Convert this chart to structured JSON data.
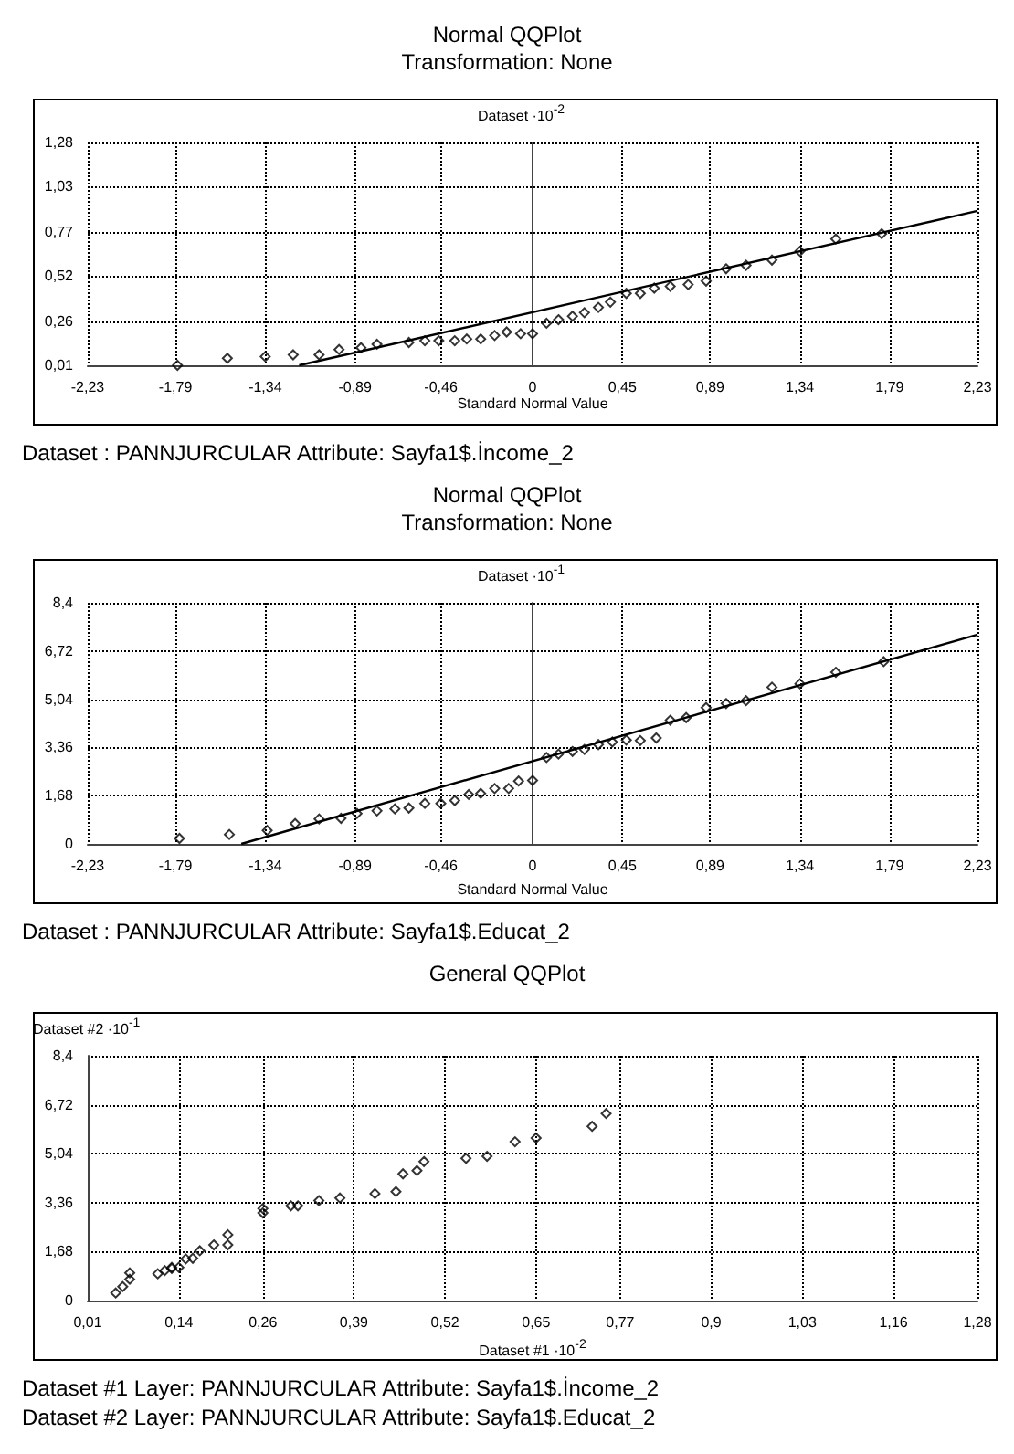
{
  "chart_data": [
    {
      "type": "scatter",
      "title": "Normal QQPlot",
      "subtitle": "Transformation: None",
      "xlabel": "Standard Normal Value",
      "ylabel": "Dataset ·10$^{-2}$",
      "marker": "diamond",
      "grid": true,
      "annotations": [
        "Dataset : PANNJURCULAR Attribute: Sayfa1$.İncome_2"
      ],
      "xlim": [
        -2.23,
        2.23
      ],
      "xticks": [
        {
          "value": -2.23,
          "label": "-2,23"
        },
        {
          "value": -1.79,
          "label": "-1,79"
        },
        {
          "value": -1.34,
          "label": "-1,34"
        },
        {
          "value": -0.89,
          "label": "-0,89"
        },
        {
          "value": -0.46,
          "label": "-0,46"
        },
        0,
        {
          "value": 0.45,
          "label": "0,45"
        },
        {
          "value": 0.89,
          "label": "0,89"
        },
        {
          "value": 1.34,
          "label": "1,34"
        },
        {
          "value": 1.79,
          "label": "1,79"
        },
        {
          "value": 2.23,
          "label": "2,23"
        }
      ],
      "ylim": [
        0.01,
        1.28
      ],
      "yticks": [
        {
          "value": 0.01,
          "label": "0,01"
        },
        {
          "value": 0.26,
          "label": "0,26"
        },
        {
          "value": 0.52,
          "label": "0,52"
        },
        {
          "value": 0.77,
          "label": "0,77"
        },
        {
          "value": 1.03,
          "label": "1,03"
        },
        {
          "value": 1.28,
          "label": "1,28"
        }
      ],
      "series": [
        {
          "color": "#000000",
          "x": [
            -1.78,
            -1.53,
            -1.34,
            -1.2,
            -1.07,
            -0.97,
            -0.86,
            -0.78,
            -0.62,
            -0.54,
            -0.47,
            -0.39,
            -0.33,
            -0.26,
            -0.19,
            -0.13,
            -0.06,
            0,
            0.07,
            0.13,
            0.2,
            0.26,
            0.33,
            0.39,
            0.47,
            0.54,
            0.61,
            0.69,
            0.78,
            0.87,
            0.97,
            1.07,
            1.2,
            1.34,
            1.52,
            1.75
          ],
          "values": [
            0.01,
            0.05,
            0.06,
            0.07,
            0.07,
            0.1,
            0.11,
            0.13,
            0.14,
            0.15,
            0.15,
            0.15,
            0.16,
            0.16,
            0.18,
            0.2,
            0.19,
            0.19,
            0.25,
            0.27,
            0.29,
            0.31,
            0.34,
            0.37,
            0.42,
            0.42,
            0.45,
            0.46,
            0.47,
            0.49,
            0.56,
            0.58,
            0.61,
            0.66,
            0.73,
            0.76
          ]
        },
        {
          "type": "line",
          "marker": "none",
          "color": "#000000",
          "x": [
            -1.17,
            2.23
          ],
          "values": [
            0.01,
            0.89
          ]
        }
      ]
    },
    {
      "type": "scatter",
      "title": "Normal QQPlot",
      "subtitle": "Transformation: None",
      "xlabel": "Standard Normal Value",
      "ylabel": "Dataset ·10$^{-1}$",
      "marker": "diamond",
      "grid": true,
      "annotations": [
        "Dataset : PANNJURCULAR Attribute: Sayfa1$.Educat_2"
      ],
      "xlim": [
        -2.23,
        2.23
      ],
      "xticks": [
        {
          "value": -2.23,
          "label": "-2,23"
        },
        {
          "value": -1.79,
          "label": "-1,79"
        },
        {
          "value": -1.34,
          "label": "-1,34"
        },
        {
          "value": -0.89,
          "label": "-0,89"
        },
        {
          "value": -0.46,
          "label": "-0,46"
        },
        0,
        {
          "value": 0.45,
          "label": "0,45"
        },
        {
          "value": 0.89,
          "label": "0,89"
        },
        {
          "value": 1.34,
          "label": "1,34"
        },
        {
          "value": 1.79,
          "label": "1,79"
        },
        {
          "value": 2.23,
          "label": "2,23"
        }
      ],
      "ylim": [
        0,
        8.4
      ],
      "yticks": [
        0,
        {
          "value": 1.68,
          "label": "1,68"
        },
        {
          "value": 3.36,
          "label": "3,36"
        },
        {
          "value": 5.04,
          "label": "5,04"
        },
        {
          "value": 6.72,
          "label": "6,72"
        },
        {
          "value": 8.4,
          "label": "8,4"
        }
      ],
      "series": [
        {
          "color": "#000000",
          "x": [
            -1.77,
            -1.52,
            -1.33,
            -1.19,
            -1.07,
            -0.96,
            -0.88,
            -0.78,
            -0.69,
            -0.62,
            -0.54,
            -0.46,
            -0.39,
            -0.32,
            -0.26,
            -0.19,
            -0.12,
            -0.07,
            0,
            0.07,
            0.13,
            0.2,
            0.26,
            0.33,
            0.4,
            0.47,
            0.54,
            0.62,
            0.69,
            0.77,
            0.87,
            0.97,
            1.07,
            1.2,
            1.34,
            1.52,
            1.76
          ],
          "values": [
            0.19,
            0.33,
            0.47,
            0.71,
            0.87,
            0.89,
            1.06,
            1.15,
            1.22,
            1.25,
            1.41,
            1.41,
            1.51,
            1.72,
            1.76,
            1.93,
            1.93,
            2.19,
            2.21,
            3.01,
            3.13,
            3.22,
            3.29,
            3.46,
            3.55,
            3.62,
            3.6,
            3.69,
            4.31,
            4.4,
            4.75,
            4.89,
            4.99,
            5.46,
            5.58,
            5.98,
            6.35
          ]
        },
        {
          "type": "line",
          "marker": "none",
          "color": "#000000",
          "x": [
            -1.46,
            2.23
          ],
          "values": [
            0,
            7.29
          ]
        }
      ]
    },
    {
      "type": "scatter",
      "title": "General QQPlot",
      "xlabel": "Dataset #1 ·10$^{-2}$",
      "ylabel": "Dataset #2 ·10$^{-1}$",
      "marker": "diamond",
      "grid": true,
      "annotations": [
        "Dataset #1 Layer: PANNJURCULAR Attribute: Sayfa1$.İncome_2",
        "Dataset #2 Layer: PANNJURCULAR Attribute: Sayfa1$.Educat_2"
      ],
      "xlim": [
        0.01,
        1.28
      ],
      "xticks": [
        {
          "value": 0.01,
          "label": "0,01"
        },
        {
          "value": 0.14,
          "label": "0,14"
        },
        {
          "value": 0.26,
          "label": "0,26"
        },
        {
          "value": 0.39,
          "label": "0,39"
        },
        {
          "value": 0.52,
          "label": "0,52"
        },
        {
          "value": 0.65,
          "label": "0,65"
        },
        {
          "value": 0.77,
          "label": "0,77"
        },
        {
          "value": 0.9,
          "label": "0,9"
        },
        {
          "value": 1.03,
          "label": "1,03"
        },
        {
          "value": 1.16,
          "label": "1,16"
        },
        {
          "value": 1.28,
          "label": "1,28"
        }
      ],
      "ylim": [
        0,
        8.4
      ],
      "yticks": [
        0,
        {
          "value": 1.68,
          "label": "1,68"
        },
        {
          "value": 3.36,
          "label": "3,36"
        },
        {
          "value": 5.04,
          "label": "5,04"
        },
        {
          "value": 6.72,
          "label": "6,72"
        },
        {
          "value": 8.4,
          "label": "8,4"
        }
      ],
      "series": [
        {
          "color": "#000000",
          "x": [
            0.05,
            0.06,
            0.07,
            0.07,
            0.11,
            0.12,
            0.13,
            0.13,
            0.14,
            0.15,
            0.16,
            0.17,
            0.19,
            0.21,
            0.21,
            0.26,
            0.26,
            0.3,
            0.31,
            0.34,
            0.37,
            0.42,
            0.45,
            0.46,
            0.48,
            0.49,
            0.55,
            0.58,
            0.62,
            0.65,
            0.73,
            0.75
          ],
          "values": [
            0.26,
            0.48,
            0.73,
            0.95,
            0.92,
            1.03,
            1.1,
            1.14,
            1.14,
            1.43,
            1.45,
            1.71,
            1.91,
            1.91,
            2.26,
            3.01,
            3.16,
            3.25,
            3.25,
            3.43,
            3.52,
            3.67,
            3.74,
            4.35,
            4.46,
            4.77,
            4.88,
            4.95,
            5.45,
            5.58,
            5.98,
            6.42
          ]
        }
      ]
    }
  ]
}
